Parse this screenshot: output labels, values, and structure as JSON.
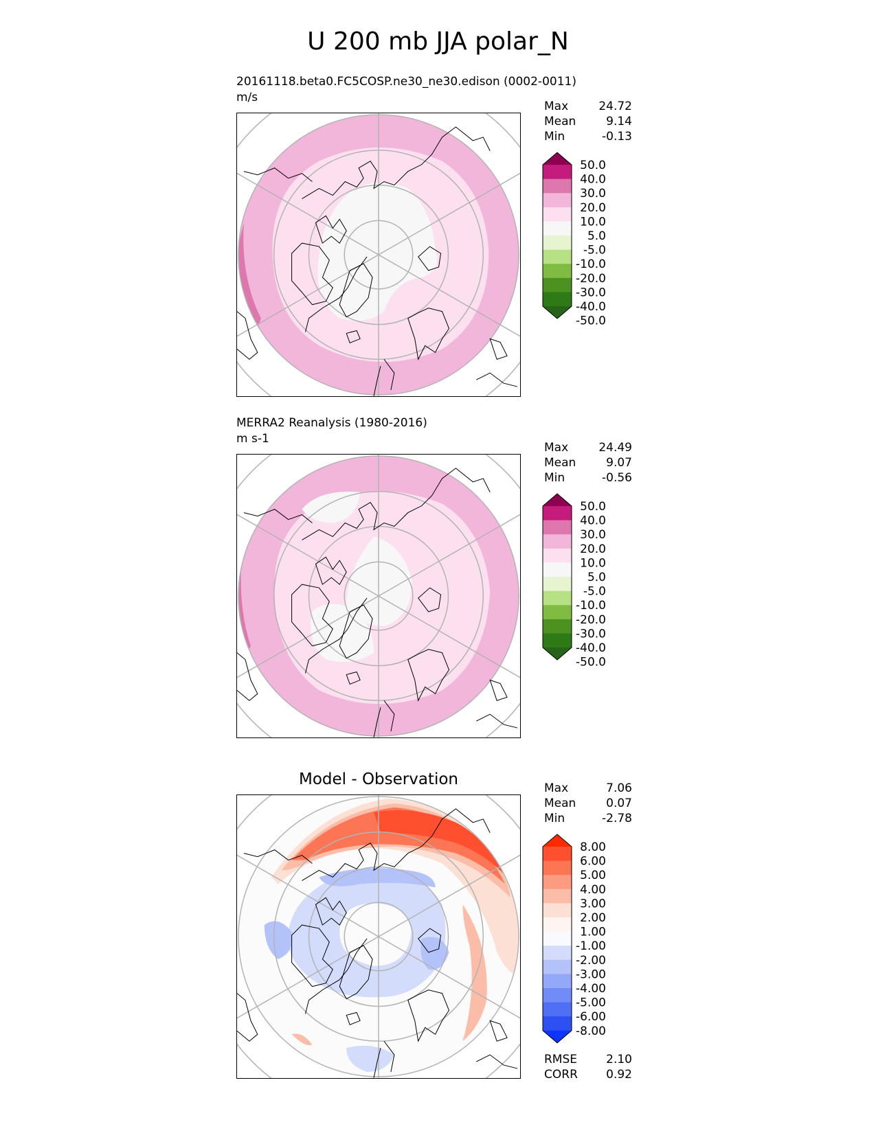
{
  "figure": {
    "title": "U 200 mb JJA polar_N"
  },
  "chart_data": [
    {
      "type": "heatmap",
      "name": "test",
      "title": "20161118.beta0.FC5COSP.ne30_ne30.edison (0002-0011)",
      "units": "m/s",
      "stats": [
        {
          "label": "Max",
          "value": "24.72"
        },
        {
          "label": "Mean",
          "value": "9.14"
        },
        {
          "label": "Min",
          "value": "-0.13"
        }
      ],
      "colorbar": {
        "levels": [
          "50.0",
          "40.0",
          "30.0",
          "20.0",
          "10.0",
          "5.0",
          "-5.0",
          "-10.0",
          "-20.0",
          "-30.0",
          "-40.0",
          "-50.0"
        ],
        "colors": [
          "#8e0152",
          "#c51b7d",
          "#de77ae",
          "#f1b6da",
          "#fde0ef",
          "#f7f7f7",
          "#e6f5d0",
          "#b8e186",
          "#7fbc41",
          "#4d9221",
          "#2d7a16",
          "#276419"
        ]
      },
      "field": {
        "polar_cap": 5,
        "inner_ring": 10,
        "outer_ring": 20,
        "edge_lobe": 30
      }
    },
    {
      "type": "heatmap",
      "name": "reference",
      "title": "MERRA2 Reanalysis (1980-2016)",
      "units": "m s-1",
      "stats": [
        {
          "label": "Max",
          "value": "24.49"
        },
        {
          "label": "Mean",
          "value": "9.07"
        },
        {
          "label": "Min",
          "value": "-0.56"
        }
      ],
      "colorbar": {
        "levels": [
          "50.0",
          "40.0",
          "30.0",
          "20.0",
          "10.0",
          "5.0",
          "-5.0",
          "-10.0",
          "-20.0",
          "-30.0",
          "-40.0",
          "-50.0"
        ],
        "colors": [
          "#8e0152",
          "#c51b7d",
          "#de77ae",
          "#f1b6da",
          "#fde0ef",
          "#f7f7f7",
          "#e6f5d0",
          "#b8e186",
          "#7fbc41",
          "#4d9221",
          "#2d7a16",
          "#276419"
        ]
      },
      "field": {
        "polar_cap": 5,
        "inner_ring": 10,
        "outer_ring": 20,
        "edge_lobe": 30
      }
    },
    {
      "type": "heatmap",
      "name": "difference",
      "title": "Model - Observation",
      "stats": [
        {
          "label": "Max",
          "value": "7.06"
        },
        {
          "label": "Mean",
          "value": "0.07"
        },
        {
          "label": "Min",
          "value": "-2.78"
        }
      ],
      "colorbar": {
        "levels": [
          "8.00",
          "6.00",
          "5.00",
          "4.00",
          "3.00",
          "2.00",
          "1.00",
          "-1.00",
          "-2.00",
          "-3.00",
          "-4.00",
          "-5.00",
          "-6.00",
          "-8.00"
        ],
        "colors": [
          "#ff2a00",
          "#fe4f2e",
          "#fc7656",
          "#fb9c80",
          "#fcbda8",
          "#fde0d4",
          "#fef4f1",
          "#f9fafd",
          "#d3dcfb",
          "#b4c2fa",
          "#93a8f8",
          "#718bf7",
          "#4f6ff5",
          "#2d50f3",
          "#1034ff"
        ]
      },
      "field": {
        "positive_arc_max": 7.06,
        "negative_ring_min": -2.78
      },
      "footer": [
        {
          "label": "RMSE",
          "value": "2.10"
        },
        {
          "label": "CORR",
          "value": "0.92"
        }
      ]
    }
  ]
}
